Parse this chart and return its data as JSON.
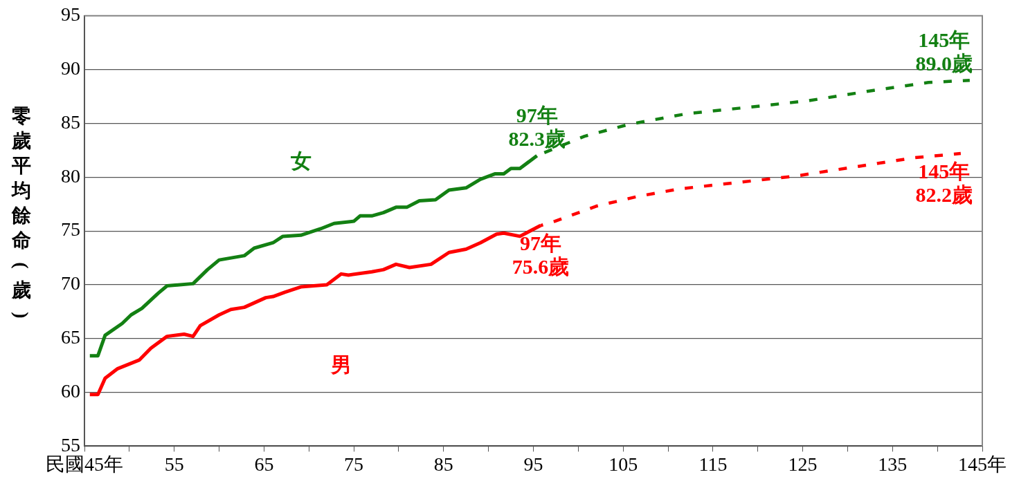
{
  "chart_data": {
    "type": "line",
    "ylabel": "零歲平均餘命(歲)",
    "xlim": [
      45,
      145
    ],
    "ylim": [
      55,
      95
    ],
    "xticks": [
      {
        "value": 45,
        "label": "民國45年"
      },
      {
        "value": 50,
        "label": null
      },
      55,
      {
        "value": 60,
        "label": null
      },
      65,
      {
        "value": 70,
        "label": null
      },
      75,
      {
        "value": 80,
        "label": null
      },
      85,
      {
        "value": 90,
        "label": null
      },
      95,
      {
        "value": 100,
        "label": null
      },
      105,
      {
        "value": 110,
        "label": null
      },
      115,
      {
        "value": 120,
        "label": null
      },
      125,
      {
        "value": 130,
        "label": null
      },
      135,
      {
        "value": 140,
        "label": null
      },
      {
        "value": 145,
        "label": "145年"
      }
    ],
    "yticks": [
      55,
      60,
      65,
      70,
      75,
      80,
      85,
      90,
      95
    ],
    "grid": "y",
    "legend": false,
    "marker": "none",
    "series": [
      {
        "name": "女",
        "color": "#138013",
        "line_style": "solid",
        "x": [
          45.6,
          46.5,
          47.3,
          49.2,
          50.2,
          51.4,
          53.2,
          54.2,
          57.1,
          58.7,
          60.0,
          62.8,
          63.9,
          66.0,
          67.1,
          69.1,
          71.3,
          72.8,
          75.0,
          75.7,
          77.0,
          78.3,
          79.7,
          80.9,
          82.3,
          84.1,
          85.6,
          87.5,
          89.1,
          90.7,
          91.7,
          92.5,
          93.5,
          95.4
        ],
        "values": [
          63.4,
          63.4,
          65.3,
          66.4,
          67.2,
          67.8,
          69.2,
          69.9,
          70.1,
          71.4,
          72.3,
          72.7,
          73.4,
          73.9,
          74.5,
          74.6,
          75.2,
          75.7,
          75.9,
          76.4,
          76.4,
          76.7,
          77.2,
          77.2,
          77.8,
          77.9,
          78.8,
          79.0,
          79.8,
          80.3,
          80.3,
          80.8,
          80.8,
          82.0
        ]
      },
      {
        "color": "#138013",
        "line_style": "dashed",
        "x": [
          95.4,
          100.7,
          105.6,
          112.1,
          119.0,
          125.6,
          132.4,
          139.0,
          143.6
        ],
        "values": [
          82.0,
          83.8,
          84.9,
          85.9,
          86.5,
          87.1,
          88.0,
          88.8,
          89.0
        ]
      },
      {
        "name": "男",
        "color": "#ff0000",
        "line_style": "solid",
        "x": [
          45.6,
          46.5,
          47.3,
          48.7,
          51.1,
          52.4,
          54.2,
          56.1,
          57.1,
          57.9,
          60.0,
          61.3,
          62.8,
          65.2,
          66.0,
          67.3,
          69.1,
          72.0,
          73.6,
          74.4,
          77.0,
          78.3,
          79.7,
          81.2,
          83.6,
          85.6,
          87.5,
          89.1,
          90.9,
          91.7,
          93.5,
          95.8
        ],
        "values": [
          59.8,
          59.8,
          61.3,
          62.2,
          63.0,
          64.1,
          65.2,
          65.4,
          65.2,
          66.2,
          67.2,
          67.7,
          67.9,
          68.8,
          68.9,
          69.3,
          69.8,
          70.0,
          71.0,
          70.9,
          71.2,
          71.4,
          71.9,
          71.6,
          71.9,
          73.0,
          73.3,
          73.9,
          74.7,
          74.8,
          74.5,
          75.5
        ]
      },
      {
        "color": "#ff0000",
        "line_style": "dashed",
        "x": [
          95.8,
          97.4,
          102.0,
          106.6,
          111.2,
          117.7,
          124.2,
          131.2,
          137.4,
          142.6
        ],
        "values": [
          75.5,
          75.9,
          77.3,
          78.2,
          78.9,
          79.5,
          80.1,
          81.0,
          81.8,
          82.2
        ]
      }
    ],
    "annotations": [
      "97年\n82.3歲",
      "145年\n89.0歲",
      "97年\n75.6歲",
      "145年\n82.2歲"
    ]
  }
}
